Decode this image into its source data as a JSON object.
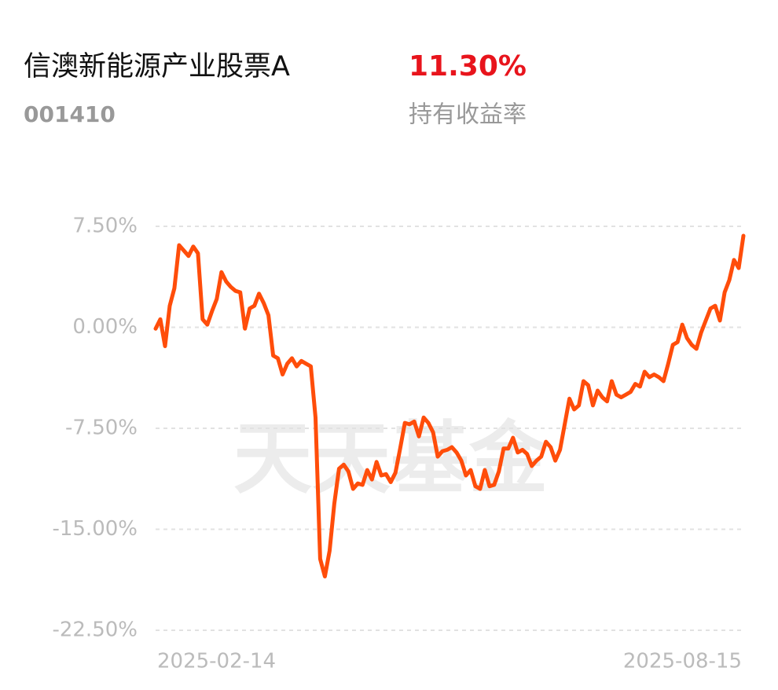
{
  "header": {
    "title": "信澳新能源产业股票A",
    "code": "001410",
    "return_value": "11.30%",
    "return_label": "持有收益率"
  },
  "chart_data": {
    "type": "line",
    "watermark": "天天基金",
    "color": "#ff4d0a",
    "grid": true,
    "ylim": [
      -22.5,
      7.5
    ],
    "yticks": [
      {
        "value": 7.5,
        "label": "7.50%"
      },
      {
        "value": 0,
        "label": "0.00%"
      },
      {
        "value": -7.5,
        "label": "-7.50%"
      },
      {
        "value": -15,
        "label": "-15.00%"
      },
      {
        "value": -22.5,
        "label": "-22.50%"
      }
    ],
    "categories": [
      "2025-02-14",
      null,
      null,
      null,
      null,
      null,
      null,
      null,
      null,
      null,
      null,
      null,
      null,
      null,
      null,
      null,
      null,
      null,
      null,
      null,
      null,
      null,
      null,
      null,
      null,
      null,
      null,
      null,
      null,
      null,
      null,
      null,
      null,
      null,
      null,
      null,
      null,
      null,
      null,
      null,
      null,
      null,
      null,
      null,
      null,
      null,
      null,
      null,
      null,
      null,
      null,
      null,
      null,
      null,
      null,
      null,
      null,
      null,
      null,
      null,
      null,
      null,
      null,
      null,
      null,
      null,
      null,
      null,
      null,
      null,
      null,
      null,
      null,
      null,
      null,
      null,
      null,
      null,
      null,
      null,
      null,
      null,
      null,
      null,
      null,
      null,
      null,
      null,
      null,
      null,
      null,
      null,
      null,
      null,
      null,
      null,
      null,
      null,
      null,
      null,
      null,
      null,
      null,
      null,
      null,
      null,
      null,
      null,
      null,
      null,
      null,
      null,
      null,
      null,
      null,
      null,
      null,
      null,
      null,
      null,
      null,
      null,
      null,
      null,
      null,
      "2025-08-15"
    ],
    "values": [
      -0.1,
      0.6,
      -1.4,
      1.6,
      2.9,
      6.1,
      5.7,
      5.3,
      6.0,
      5.5,
      0.6,
      0.2,
      1.2,
      2.1,
      4.1,
      3.4,
      3.0,
      2.7,
      2.6,
      -0.1,
      1.4,
      1.6,
      2.5,
      1.8,
      0.9,
      -2.1,
      -2.3,
      -3.5,
      -2.7,
      -2.3,
      -2.9,
      -2.5,
      -2.7,
      -2.9,
      -6.7,
      -17.2,
      -18.5,
      -16.6,
      -13.1,
      -10.5,
      -10.2,
      -10.7,
      -12.0,
      -11.6,
      -11.7,
      -10.6,
      -11.3,
      -10.0,
      -11.0,
      -10.9,
      -11.5,
      -10.8,
      -9.0,
      -7.1,
      -7.2,
      -7.0,
      -8.1,
      -6.7,
      -7.1,
      -7.8,
      -9.6,
      -9.2,
      -9.1,
      -8.9,
      -9.3,
      -9.9,
      -11.0,
      -10.6,
      -11.8,
      -12.0,
      -10.6,
      -11.8,
      -11.7,
      -10.7,
      -9.0,
      -9.0,
      -8.2,
      -9.3,
      -9.1,
      -9.4,
      -10.3,
      -9.9,
      -9.6,
      -8.5,
      -8.9,
      -9.9,
      -9.1,
      -7.2,
      -5.3,
      -6.1,
      -5.8,
      -4.0,
      -4.3,
      -5.8,
      -4.7,
      -5.2,
      -5.5,
      -4.0,
      -5.0,
      -5.2,
      -5.0,
      -4.8,
      -4.2,
      -4.4,
      -3.3,
      -3.7,
      -3.5,
      -3.7,
      -4.0,
      -2.7,
      -1.3,
      -1.1,
      0.2,
      -0.8,
      -1.3,
      -1.6,
      -0.4,
      0.5,
      1.4,
      1.6,
      0.5,
      2.6,
      3.5,
      5.0,
      4.4,
      6.8
    ]
  }
}
